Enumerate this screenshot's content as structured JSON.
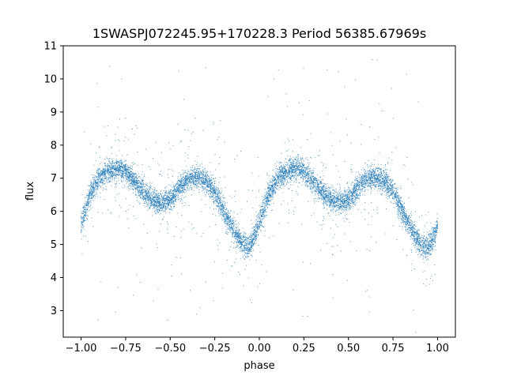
{
  "chart_data": {
    "type": "scatter",
    "title": "1SWASPJ072245.95+170228.3 Period 56385.67969s",
    "xlabel": "phase",
    "ylabel": "flux",
    "xlim": [
      -1.1,
      1.1
    ],
    "ylim": [
      2.2,
      11.0
    ],
    "xticks": [
      -1.0,
      -0.75,
      -0.5,
      -0.25,
      0.0,
      0.25,
      0.5,
      0.75,
      1.0
    ],
    "xtick_labels": [
      "−1.00",
      "−0.75",
      "−0.50",
      "−0.25",
      "0.00",
      "0.25",
      "0.50",
      "0.75",
      "1.00"
    ],
    "yticks": [
      3,
      4,
      5,
      6,
      7,
      8,
      9,
      10,
      11
    ],
    "ytick_labels": [
      "3",
      "4",
      "5",
      "6",
      "7",
      "8",
      "9",
      "10",
      "11"
    ],
    "grid": false,
    "marker_color": "#1f77b4",
    "series": [
      {
        "x": [
          -1.0,
          -0.95,
          -0.9,
          -0.85,
          -0.8,
          -0.75,
          -0.7,
          -0.65,
          -0.6,
          -0.55,
          -0.5,
          -0.45,
          -0.4,
          -0.35,
          -0.3,
          -0.25,
          -0.2,
          -0.15,
          -0.1,
          -0.07,
          -0.05,
          -0.03,
          0.0,
          0.05,
          0.1,
          0.15,
          0.2,
          0.25,
          0.3,
          0.35,
          0.4,
          0.45,
          0.5,
          0.55,
          0.6,
          0.65,
          0.7,
          0.75,
          0.8,
          0.85,
          0.9,
          0.93,
          0.95,
          0.97,
          1.0
        ],
        "y": [
          5.6,
          6.5,
          7.0,
          7.2,
          7.3,
          7.2,
          6.9,
          6.6,
          6.35,
          6.25,
          6.35,
          6.7,
          6.95,
          7.05,
          6.95,
          6.6,
          6.0,
          5.5,
          5.05,
          4.9,
          4.95,
          5.2,
          5.7,
          6.5,
          7.0,
          7.2,
          7.3,
          7.2,
          6.9,
          6.6,
          6.35,
          6.25,
          6.35,
          6.7,
          6.95,
          7.05,
          6.95,
          6.6,
          6.0,
          5.5,
          5.05,
          4.9,
          4.95,
          5.1,
          5.6
        ]
      }
    ]
  }
}
